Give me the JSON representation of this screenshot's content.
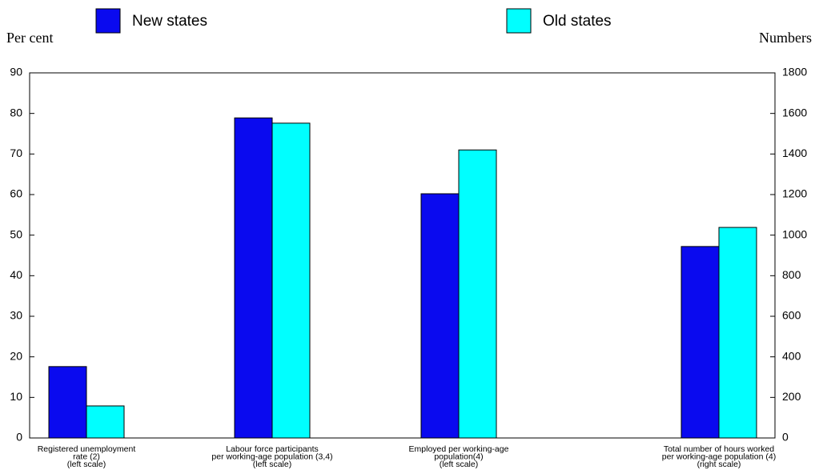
{
  "chart_data": {
    "type": "bar",
    "y_label": "Per cent",
    "y2_label": "Numbers",
    "categories": [
      [
        "Registered unemployment",
        "rate (2)",
        "(left scale)"
      ],
      [
        "Labour force participants",
        "per working-age population (3,4)",
        "(left scale)"
      ],
      [
        "Employed per working-age",
        "population(4)",
        "(left scale)"
      ],
      [
        "Total number of hours worked",
        "per working-age population (4)",
        "(right scale)"
      ]
    ],
    "series": [
      {
        "name": "New states",
        "color": "#0a0aef",
        "values": [
          17.6,
          78.9,
          60.2,
          null
        ]
      },
      {
        "name": "Old states",
        "color": "#00ffff",
        "values": [
          7.9,
          77.6,
          71.0,
          null
        ]
      },
      {
        "axis": "y2",
        "color": "#0a0aef",
        "values": [
          null,
          null,
          null,
          944
        ]
      },
      {
        "axis": "y2",
        "color": "#00ffff",
        "values": [
          null,
          null,
          null,
          1038
        ]
      }
    ],
    "ylim": [
      0,
      90
    ],
    "yticks": [
      0,
      10,
      20,
      30,
      40,
      50,
      60,
      70,
      80,
      90
    ],
    "y2lim": [
      0,
      1800
    ],
    "y2ticks": [
      0,
      200,
      400,
      600,
      800,
      1000,
      1200,
      1400,
      1600,
      1800
    ]
  }
}
